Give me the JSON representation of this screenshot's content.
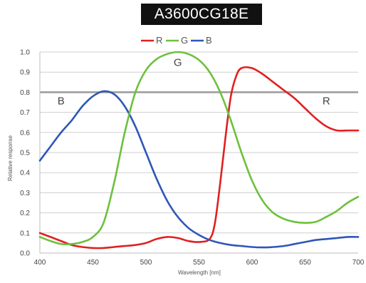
{
  "title": "A3600CG18E",
  "chart_data": {
    "type": "line",
    "title": "A3600CG18E",
    "xlabel": "Wavelength [nm]",
    "ylabel": "Relative response",
    "xlim": [
      400,
      700
    ],
    "ylim": [
      0,
      1.0
    ],
    "xticks": [
      400,
      450,
      500,
      550,
      600,
      650,
      700
    ],
    "yticks": [
      "0.0",
      "0.1",
      "0.2",
      "0.3",
      "0.4",
      "0.5",
      "0.6",
      "0.7",
      "0.8",
      "0.9",
      "1.0"
    ],
    "grid": true,
    "legend_position": "top-center",
    "legend": [
      {
        "label": "R",
        "color": "#e02020"
      },
      {
        "label": "G",
        "color": "#6cc13c"
      },
      {
        "label": "B",
        "color": "#2f56b8"
      }
    ],
    "annotations": [
      {
        "text": "B",
        "x": 420,
        "y": 0.74
      },
      {
        "text": "G",
        "x": 530,
        "y": 0.93
      },
      {
        "text": "R",
        "x": 670,
        "y": 0.74
      }
    ],
    "series": [
      {
        "name": "R",
        "color": "#e02020",
        "points": [
          [
            400,
            0.1
          ],
          [
            410,
            0.08
          ],
          [
            420,
            0.06
          ],
          [
            430,
            0.04
          ],
          [
            440,
            0.03
          ],
          [
            450,
            0.025
          ],
          [
            460,
            0.025
          ],
          [
            470,
            0.03
          ],
          [
            480,
            0.035
          ],
          [
            490,
            0.04
          ],
          [
            500,
            0.05
          ],
          [
            510,
            0.07
          ],
          [
            520,
            0.08
          ],
          [
            530,
            0.075
          ],
          [
            540,
            0.06
          ],
          [
            550,
            0.055
          ],
          [
            560,
            0.07
          ],
          [
            565,
            0.15
          ],
          [
            570,
            0.35
          ],
          [
            575,
            0.58
          ],
          [
            580,
            0.78
          ],
          [
            585,
            0.88
          ],
          [
            590,
            0.92
          ],
          [
            600,
            0.92
          ],
          [
            610,
            0.89
          ],
          [
            620,
            0.85
          ],
          [
            630,
            0.81
          ],
          [
            640,
            0.77
          ],
          [
            650,
            0.72
          ],
          [
            660,
            0.67
          ],
          [
            670,
            0.63
          ],
          [
            680,
            0.61
          ],
          [
            690,
            0.61
          ],
          [
            700,
            0.61
          ]
        ]
      },
      {
        "name": "G",
        "color": "#6cc13c",
        "points": [
          [
            400,
            0.08
          ],
          [
            410,
            0.06
          ],
          [
            420,
            0.045
          ],
          [
            430,
            0.045
          ],
          [
            440,
            0.055
          ],
          [
            450,
            0.08
          ],
          [
            460,
            0.15
          ],
          [
            470,
            0.35
          ],
          [
            480,
            0.6
          ],
          [
            490,
            0.8
          ],
          [
            500,
            0.91
          ],
          [
            510,
            0.965
          ],
          [
            520,
            0.99
          ],
          [
            530,
            1.0
          ],
          [
            540,
            0.99
          ],
          [
            550,
            0.96
          ],
          [
            560,
            0.9
          ],
          [
            570,
            0.8
          ],
          [
            580,
            0.66
          ],
          [
            590,
            0.5
          ],
          [
            600,
            0.36
          ],
          [
            610,
            0.26
          ],
          [
            620,
            0.2
          ],
          [
            630,
            0.17
          ],
          [
            640,
            0.155
          ],
          [
            650,
            0.15
          ],
          [
            660,
            0.155
          ],
          [
            670,
            0.18
          ],
          [
            680,
            0.21
          ],
          [
            690,
            0.25
          ],
          [
            700,
            0.28
          ]
        ]
      },
      {
        "name": "B",
        "color": "#2f56b8",
        "points": [
          [
            400,
            0.46
          ],
          [
            410,
            0.53
          ],
          [
            420,
            0.6
          ],
          [
            430,
            0.66
          ],
          [
            440,
            0.73
          ],
          [
            450,
            0.78
          ],
          [
            460,
            0.805
          ],
          [
            470,
            0.79
          ],
          [
            480,
            0.73
          ],
          [
            490,
            0.63
          ],
          [
            500,
            0.5
          ],
          [
            510,
            0.37
          ],
          [
            520,
            0.26
          ],
          [
            530,
            0.18
          ],
          [
            540,
            0.125
          ],
          [
            550,
            0.09
          ],
          [
            560,
            0.065
          ],
          [
            570,
            0.05
          ],
          [
            580,
            0.04
          ],
          [
            590,
            0.035
          ],
          [
            600,
            0.03
          ],
          [
            610,
            0.028
          ],
          [
            620,
            0.03
          ],
          [
            630,
            0.035
          ],
          [
            640,
            0.045
          ],
          [
            650,
            0.055
          ],
          [
            660,
            0.065
          ],
          [
            670,
            0.07
          ],
          [
            680,
            0.075
          ],
          [
            690,
            0.08
          ],
          [
            700,
            0.08
          ]
        ]
      }
    ]
  }
}
